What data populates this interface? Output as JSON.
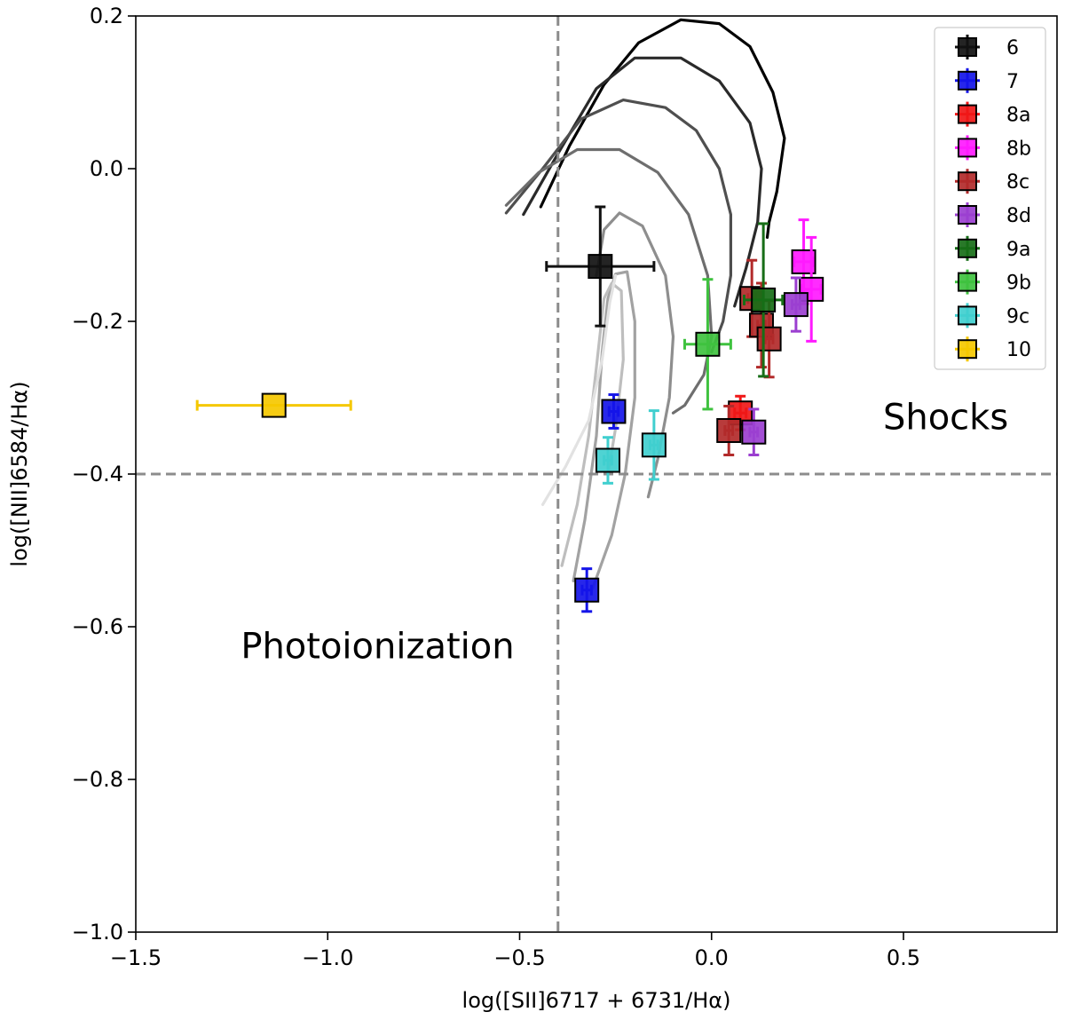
{
  "chart_data": {
    "type": "scatter",
    "title": "",
    "xlabel": "log([SII]6717 + 6731/Hα)",
    "ylabel": "log([NII]6584/Hα)",
    "xlim": [
      -1.5,
      0.9
    ],
    "ylim": [
      -1.0,
      0.2
    ],
    "xticks": [
      -1.5,
      -1.0,
      -0.5,
      0.0,
      0.5
    ],
    "yticks": [
      -1.0,
      -0.8,
      -0.6,
      -0.4,
      -0.2,
      0.0,
      0.2
    ],
    "xtick_labels": [
      "−1.5",
      "−1.0",
      "−0.5",
      "0.0",
      "0.5"
    ],
    "ytick_labels": [
      "−1.0",
      "−0.8",
      "−0.6",
      "−0.4",
      "−0.2",
      "0.0",
      "0.2"
    ],
    "legend_position": "upper-right",
    "reference_lines": [
      {
        "orientation": "vertical",
        "value": -0.4,
        "color": "#8c8c8c",
        "style": "dashed"
      },
      {
        "orientation": "horizontal",
        "value": -0.4,
        "color": "#8c8c8c",
        "style": "dashed"
      }
    ],
    "annotations": [
      {
        "text": "Shocks",
        "x": 0.61,
        "y": -0.325
      },
      {
        "text": "Photoionization",
        "x": -0.87,
        "y": -0.625
      }
    ],
    "series": [
      {
        "name": "6",
        "color": "#111111",
        "points": [
          {
            "x": -0.29,
            "y": -0.128,
            "xerr": 0.14,
            "yerr": 0.078
          }
        ]
      },
      {
        "name": "7",
        "color": "#1515e8",
        "points": [
          {
            "x": -0.255,
            "y": -0.318,
            "xerr": 0.012,
            "yerr": 0.022
          },
          {
            "x": -0.325,
            "y": -0.552,
            "xerr": 0.012,
            "yerr": 0.028
          }
        ]
      },
      {
        "name": "8a",
        "color": "#f01818",
        "points": [
          {
            "x": 0.075,
            "y": -0.32,
            "xerr": 0.015,
            "yerr": 0.022
          }
        ]
      },
      {
        "name": "8b",
        "color": "#ff1aff",
        "points": [
          {
            "x": 0.24,
            "y": -0.122,
            "xerr": 0.025,
            "yerr": 0.055
          },
          {
            "x": 0.26,
            "y": -0.158,
            "xerr": 0.025,
            "yerr": 0.068
          }
        ]
      },
      {
        "name": "8c",
        "color": "#b22a2a",
        "points": [
          {
            "x": 0.045,
            "y": -0.343,
            "xerr": 0.01,
            "yerr": 0.032
          },
          {
            "x": 0.105,
            "y": -0.17,
            "xerr": 0.01,
            "yerr": 0.05
          },
          {
            "x": 0.13,
            "y": -0.205,
            "xerr": 0.01,
            "yerr": 0.055
          },
          {
            "x": 0.15,
            "y": -0.223,
            "xerr": 0.01,
            "yerr": 0.05
          }
        ]
      },
      {
        "name": "8d",
        "color": "#9b3fd0",
        "points": [
          {
            "x": 0.11,
            "y": -0.345,
            "xerr": 0.01,
            "yerr": 0.03
          },
          {
            "x": 0.22,
            "y": -0.178,
            "xerr": 0.01,
            "yerr": 0.035
          }
        ]
      },
      {
        "name": "9a",
        "color": "#176e17",
        "points": [
          {
            "x": 0.135,
            "y": -0.172,
            "xerr": 0.05,
            "yerr": 0.1
          }
        ]
      },
      {
        "name": "9b",
        "color": "#3fc23f",
        "points": [
          {
            "x": -0.01,
            "y": -0.23,
            "xerr": 0.06,
            "yerr": 0.085
          }
        ]
      },
      {
        "name": "9c",
        "color": "#40cfcf",
        "points": [
          {
            "x": -0.27,
            "y": -0.382,
            "xerr": 0.01,
            "yerr": 0.03
          },
          {
            "x": -0.15,
            "y": -0.362,
            "xerr": 0.01,
            "yerr": 0.045
          }
        ]
      },
      {
        "name": "10",
        "color": "#f5c800",
        "points": [
          {
            "x": -1.14,
            "y": -0.31,
            "xerr": 0.2,
            "yerr": 0.0
          }
        ]
      }
    ],
    "model_curves": [
      {
        "color": "#000000",
        "points": [
          [
            -0.445,
            -0.05
          ],
          [
            -0.37,
            0.03
          ],
          [
            -0.28,
            0.11
          ],
          [
            -0.19,
            0.165
          ],
          [
            -0.08,
            0.195
          ],
          [
            0.02,
            0.19
          ],
          [
            0.1,
            0.16
          ],
          [
            0.16,
            0.1
          ],
          [
            0.19,
            0.04
          ],
          [
            0.17,
            -0.03
          ],
          [
            0.15,
            -0.07
          ],
          [
            0.145,
            -0.09
          ]
        ]
      },
      {
        "color": "#2a2a2a",
        "points": [
          [
            -0.49,
            -0.06
          ],
          [
            -0.4,
            0.02
          ],
          [
            -0.3,
            0.105
          ],
          [
            -0.2,
            0.145
          ],
          [
            -0.08,
            0.145
          ],
          [
            0.02,
            0.115
          ],
          [
            0.1,
            0.06
          ],
          [
            0.13,
            0.0
          ],
          [
            0.12,
            -0.07
          ],
          [
            0.09,
            -0.13
          ],
          [
            0.06,
            -0.18
          ]
        ]
      },
      {
        "color": "#4f4f4f",
        "points": [
          [
            -0.535,
            -0.058
          ],
          [
            -0.44,
            0.0
          ],
          [
            -0.34,
            0.065
          ],
          [
            -0.23,
            0.09
          ],
          [
            -0.12,
            0.08
          ],
          [
            -0.04,
            0.05
          ],
          [
            0.02,
            0.0
          ],
          [
            0.05,
            -0.06
          ],
          [
            0.05,
            -0.14
          ],
          [
            0.03,
            -0.2
          ],
          [
            0.0,
            -0.24
          ]
        ]
      },
      {
        "color": "#6e6e6e",
        "points": [
          [
            -0.535,
            -0.048
          ],
          [
            -0.45,
            -0.005
          ],
          [
            -0.35,
            0.025
          ],
          [
            -0.24,
            0.025
          ],
          [
            -0.14,
            -0.005
          ],
          [
            -0.06,
            -0.06
          ],
          [
            -0.01,
            -0.14
          ],
          [
            0.0,
            -0.22
          ],
          [
            -0.02,
            -0.27
          ],
          [
            -0.07,
            -0.31
          ],
          [
            -0.1,
            -0.32
          ]
        ]
      },
      {
        "color": "#8e8e8e",
        "points": [
          [
            -0.3,
            -0.14
          ],
          [
            -0.28,
            -0.08
          ],
          [
            -0.24,
            -0.058
          ],
          [
            -0.18,
            -0.075
          ],
          [
            -0.12,
            -0.14
          ],
          [
            -0.1,
            -0.22
          ],
          [
            -0.11,
            -0.3
          ],
          [
            -0.14,
            -0.38
          ],
          [
            -0.165,
            -0.43
          ]
        ]
      },
      {
        "color": "#a2a2a2",
        "points": [
          [
            -0.36,
            -0.54
          ],
          [
            -0.33,
            -0.46
          ],
          [
            -0.3,
            -0.35
          ],
          [
            -0.285,
            -0.24
          ],
          [
            -0.27,
            -0.17
          ],
          [
            -0.25,
            -0.138
          ],
          [
            -0.22,
            -0.135
          ],
          [
            -0.2,
            -0.2
          ],
          [
            -0.2,
            -0.3
          ],
          [
            -0.225,
            -0.4
          ],
          [
            -0.26,
            -0.48
          ],
          [
            -0.31,
            -0.55
          ]
        ]
      },
      {
        "color": "#bebebe",
        "points": [
          [
            -0.39,
            -0.52
          ],
          [
            -0.35,
            -0.44
          ],
          [
            -0.32,
            -0.35
          ],
          [
            -0.3,
            -0.26
          ],
          [
            -0.28,
            -0.17
          ],
          [
            -0.26,
            -0.15
          ],
          [
            -0.235,
            -0.16
          ],
          [
            -0.23,
            -0.25
          ],
          [
            -0.25,
            -0.34
          ],
          [
            -0.27,
            -0.4
          ]
        ]
      },
      {
        "color": "#e2e2e2",
        "points": [
          [
            -0.44,
            -0.44
          ],
          [
            -0.38,
            -0.39
          ],
          [
            -0.32,
            -0.33
          ],
          [
            -0.285,
            -0.25
          ],
          [
            -0.265,
            -0.175
          ],
          [
            -0.25,
            -0.14
          ]
        ]
      }
    ]
  }
}
